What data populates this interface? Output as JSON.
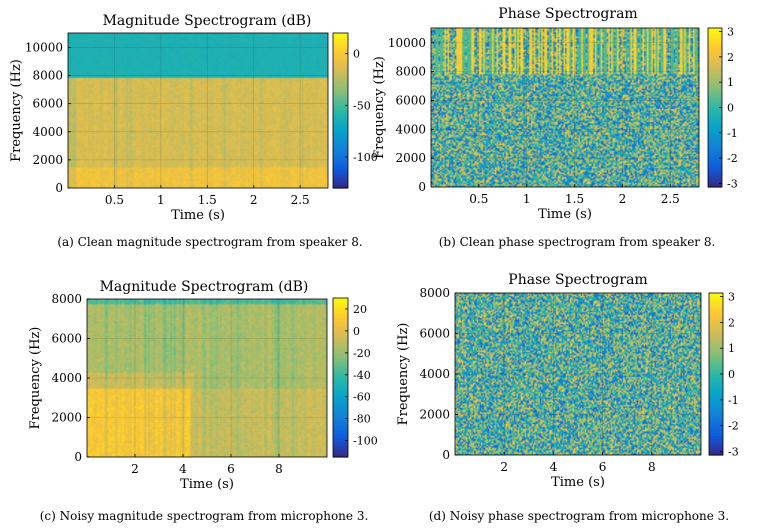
{
  "colors": {
    "parula": [
      "#352a87",
      "#0f5cdd",
      "#1481d6",
      "#06a4ca",
      "#2eb7a4",
      "#87bf77",
      "#d1bb59",
      "#fec832",
      "#f9fb0e"
    ],
    "axis": "#000000",
    "grid": "#333333"
  },
  "chart_data": [
    {
      "type": "heatmap",
      "title": "Magnitude Spectrogram (dB)",
      "xlabel": "Time (s)",
      "ylabel": "Frequency (Hz)",
      "x_ticks": [
        0.5,
        1,
        1.5,
        2,
        2.5
      ],
      "y_ticks": [
        0,
        2000,
        4000,
        6000,
        8000,
        10000
      ],
      "xlim": [
        0,
        2.8
      ],
      "ylim": [
        0,
        11025
      ],
      "colorbar_ticks": [
        0,
        -50,
        -100
      ],
      "clim": [
        -130,
        20
      ],
      "caption": "(a) Clean magnitude spectrogram from speaker 8.",
      "content": {
        "low_band_db": -15,
        "high_band_db": -62,
        "band_edge_hz": 7800
      }
    },
    {
      "type": "heatmap",
      "title": "Phase Spectrogram",
      "xlabel": "Time (s)",
      "ylabel": "Frequency (Hz)",
      "x_ticks": [
        0.5,
        1,
        1.5,
        2,
        2.5
      ],
      "y_ticks": [
        0,
        2000,
        4000,
        6000,
        8000,
        10000
      ],
      "xlim": [
        0,
        2.8
      ],
      "ylim": [
        0,
        11025
      ],
      "colorbar_ticks": [
        3,
        2,
        1,
        0,
        -1,
        -2,
        -3
      ],
      "clim": [
        -3.14,
        3.14
      ],
      "caption": "(b) Clean phase spectrogram from speaker 8.",
      "content": {
        "band_edge_hz": 7800
      }
    },
    {
      "type": "heatmap",
      "title": "Magnitude Spectrogram (dB)",
      "xlabel": "Time (s)",
      "ylabel": "Frequency (Hz)",
      "x_ticks": [
        2,
        4,
        6,
        8
      ],
      "y_ticks": [
        0,
        2000,
        4000,
        6000,
        8000
      ],
      "xlim": [
        0,
        10
      ],
      "ylim": [
        0,
        8000
      ],
      "colorbar_ticks": [
        20,
        0,
        -20,
        -40,
        -60,
        -80,
        -100
      ],
      "clim": [
        -115,
        30
      ],
      "caption": "(c) Noisy magnitude spectrogram from microphone 3.",
      "content": {
        "low_band_db": 10,
        "mid_band_db": -15,
        "top_band_db": -35
      }
    },
    {
      "type": "heatmap",
      "title": "Phase Spectrogram",
      "xlabel": "Time (s)",
      "ylabel": "Frequency (Hz)",
      "x_ticks": [
        2,
        4,
        6,
        8
      ],
      "y_ticks": [
        0,
        2000,
        4000,
        6000,
        8000
      ],
      "xlim": [
        0,
        10
      ],
      "ylim": [
        0,
        8000
      ],
      "colorbar_ticks": [
        3,
        2,
        1,
        0,
        -1,
        -2,
        -3
      ],
      "clim": [
        -3.14,
        3.14
      ],
      "caption": "(d) Noisy phase spectrogram from microphone 3.",
      "content": {}
    }
  ]
}
